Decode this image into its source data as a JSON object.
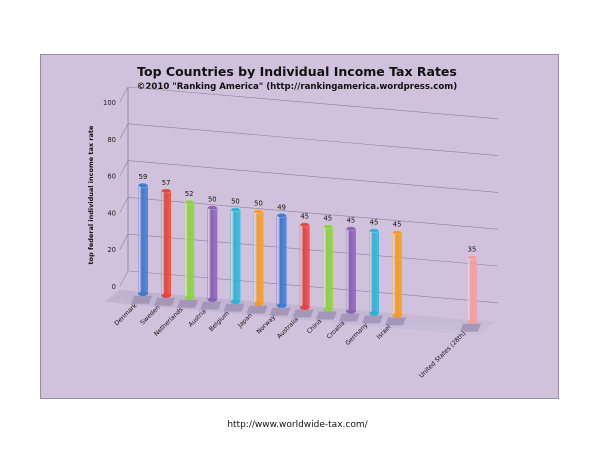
{
  "chart_data": {
    "type": "bar",
    "title": "Top Countries by Individual Income Tax Rates",
    "subtitle": "©2010 \"Ranking America\" (http://rankingamerica.wordpress.com)",
    "ylabel": "top federal individual income tax rate",
    "xlabel": "",
    "ylim": [
      0,
      100
    ],
    "yticks": [
      0,
      20,
      40,
      60,
      80,
      100
    ],
    "grid": true,
    "categories": [
      "Denmark",
      "Sweden",
      "Netherlands",
      "Austria",
      "Belgium",
      "Japan",
      "Norway",
      "Australia",
      "China",
      "Croatia",
      "Germany",
      "Israel",
      "United States (28th)"
    ],
    "values": [
      59,
      57,
      52,
      50,
      50,
      50,
      49,
      45,
      45,
      45,
      45,
      45,
      35
    ],
    "colors": [
      "#3f78d0",
      "#e2453f",
      "#8fcf44",
      "#8a5fb4",
      "#2fb2d6",
      "#f39a2e",
      "#3f78d0",
      "#e2453f",
      "#8fcf44",
      "#8a5fb4",
      "#2fb2d6",
      "#f39a2e",
      "#eea0a0"
    ]
  },
  "footer": {
    "url": "http://www.worldwide-tax.com/"
  }
}
